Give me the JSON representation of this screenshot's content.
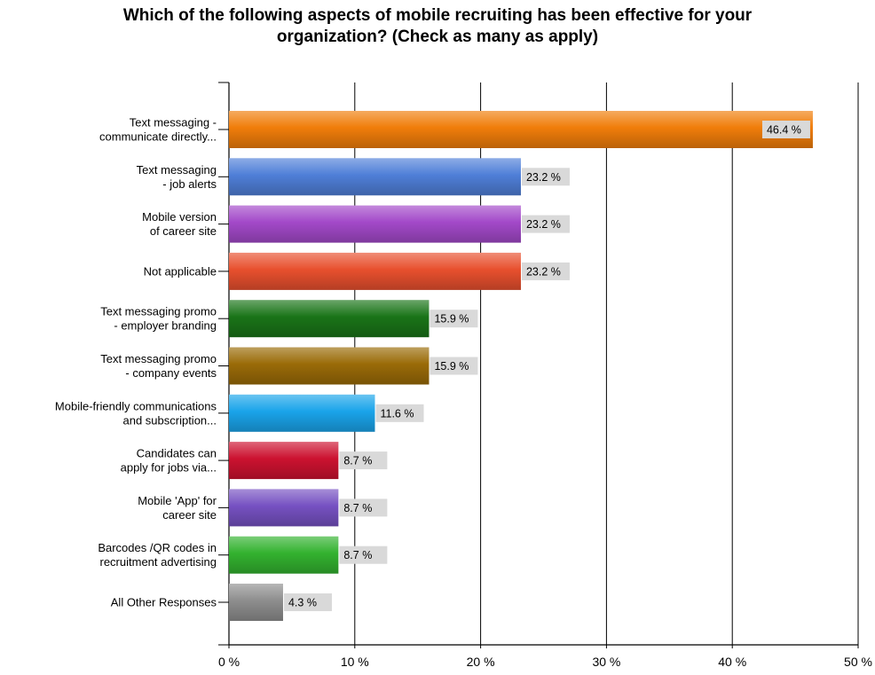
{
  "chart_data": {
    "type": "bar",
    "orientation": "horizontal",
    "title": "Which of the following aspects of mobile recruiting has been effective for your organization? (Check as many as apply)",
    "title_lines": [
      "Which of the following aspects of mobile recruiting has been effective for your",
      "organization? (Check as many as apply)"
    ],
    "categories": [
      [
        "Text messaging -",
        "communicate directly..."
      ],
      [
        "Text messaging",
        "- job alerts"
      ],
      [
        "Mobile version",
        "of career site"
      ],
      [
        "Not applicable"
      ],
      [
        "Text messaging promo",
        "- employer branding"
      ],
      [
        "Text messaging promo",
        "- company events"
      ],
      [
        "Mobile-friendly communications",
        "and subscription..."
      ],
      [
        "Candidates can",
        "apply for jobs via..."
      ],
      [
        "Mobile 'App' for",
        "career site"
      ],
      [
        "Barcodes /QR codes in",
        "recruitment advertising"
      ],
      [
        "All Other Responses"
      ]
    ],
    "values": [
      46.4,
      23.2,
      23.2,
      23.2,
      15.9,
      15.9,
      11.6,
      8.7,
      8.7,
      8.7,
      4.3
    ],
    "value_labels": [
      "46.4 %",
      "23.2 %",
      "23.2 %",
      "23.2 %",
      "15.9 %",
      "15.9 %",
      "11.6 %",
      "8.7 %",
      "8.7 %",
      "8.7 %",
      "4.3 %"
    ],
    "colors": [
      "#f07d0a",
      "#4f7fd8",
      "#a349c9",
      "#e8502e",
      "#1a7418",
      "#9a6b08",
      "#1aa4ea",
      "#cc1230",
      "#7651c2",
      "#33b22f",
      "#8e8e8e"
    ],
    "xlim": [
      0,
      50
    ],
    "ticks": [
      0,
      10,
      20,
      30,
      40,
      50
    ],
    "tick_labels": [
      "0 %",
      "10 %",
      "20 %",
      "30 %",
      "40 %",
      "50 %"
    ],
    "grid": "vertical",
    "legend": "none"
  }
}
